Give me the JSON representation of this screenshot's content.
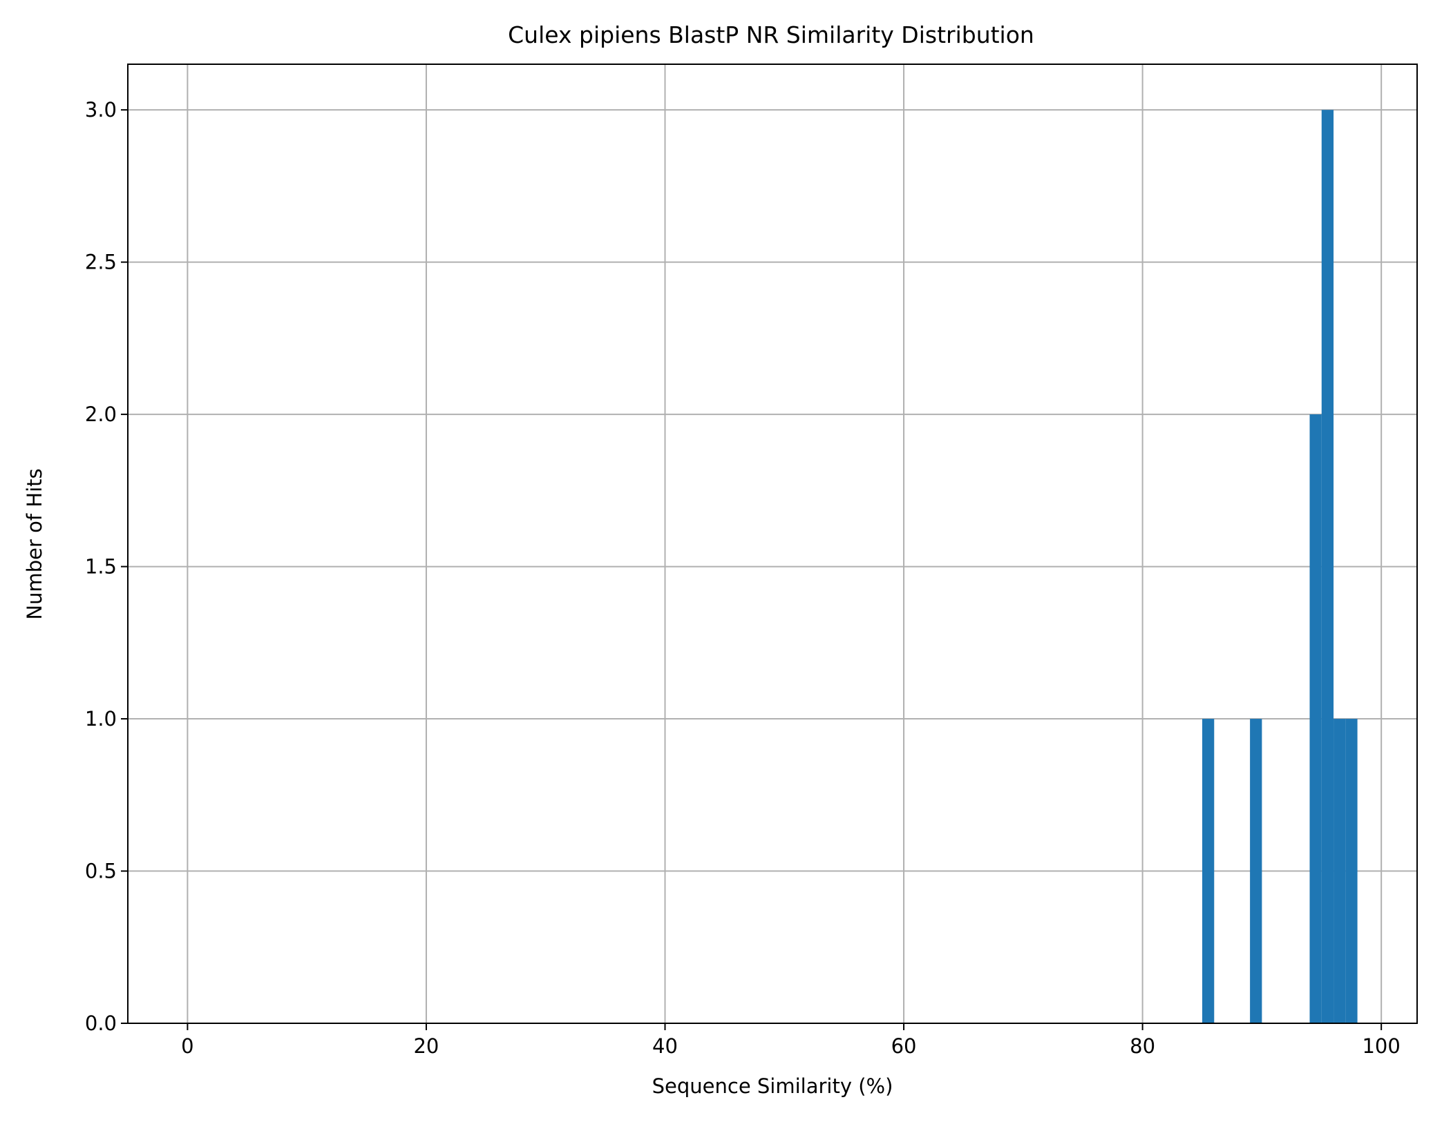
{
  "chart_data": {
    "type": "bar",
    "title": "Culex pipiens BlastP NR Similarity Distribution",
    "xlabel": "Sequence Similarity (%)",
    "ylabel": "Number of Hits",
    "xlim": [
      -5,
      103
    ],
    "ylim": [
      0,
      3.15
    ],
    "xticks": [
      "0",
      "20",
      "40",
      "60",
      "80",
      "100"
    ],
    "yticks": [
      "0.0",
      "0.5",
      "1.0",
      "1.5",
      "2.0",
      "2.5",
      "3.0"
    ],
    "grid": true,
    "bar_color": "#1f77b4",
    "bins": [
      {
        "x_start": 85.0,
        "x_end": 86.0,
        "count": 1
      },
      {
        "x_start": 89.0,
        "x_end": 90.0,
        "count": 1
      },
      {
        "x_start": 94.0,
        "x_end": 95.0,
        "count": 2
      },
      {
        "x_start": 95.0,
        "x_end": 96.0,
        "count": 3
      },
      {
        "x_start": 96.0,
        "x_end": 97.0,
        "count": 1
      },
      {
        "x_start": 97.0,
        "x_end": 98.0,
        "count": 1
      }
    ]
  }
}
